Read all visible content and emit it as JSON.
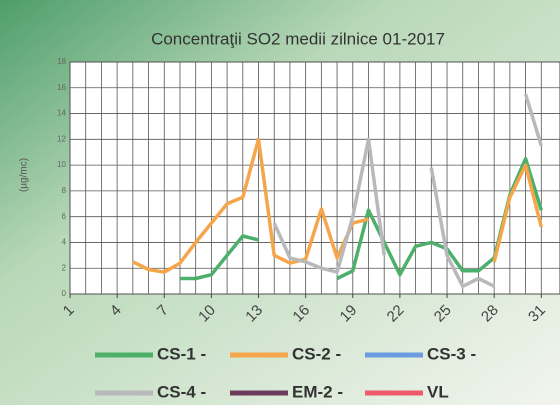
{
  "chart_data": {
    "type": "line",
    "title": "Concentraţii SO2 medii zilnice 01-2017",
    "y_label": "(µg/mc)",
    "x": [
      1,
      2,
      3,
      4,
      5,
      6,
      7,
      8,
      9,
      10,
      11,
      12,
      13,
      14,
      15,
      16,
      17,
      18,
      19,
      20,
      21,
      22,
      23,
      24,
      25,
      26,
      27,
      28,
      29,
      30,
      31
    ],
    "xlim": [
      1,
      32
    ],
    "xticks": [
      1,
      4,
      7,
      10,
      13,
      16,
      19,
      22,
      25,
      28,
      31
    ],
    "ylim": [
      0,
      18
    ],
    "yticks": [
      0,
      2,
      4,
      6,
      8,
      10,
      12,
      14,
      16,
      18
    ],
    "grid": true,
    "legend": "bottom",
    "series": [
      {
        "name": "CS-1 -",
        "color": "#4caf6a",
        "values": [
          null,
          null,
          null,
          null,
          null,
          null,
          null,
          1.2,
          1.2,
          1.5,
          3,
          4.5,
          4.2,
          null,
          null,
          null,
          null,
          1.2,
          1.8,
          6.5,
          4,
          1.5,
          3.7,
          4,
          3.5,
          1.8,
          1.8,
          2.8,
          7.7,
          10.5,
          6.5
        ]
      },
      {
        "name": "CS-2 -",
        "color": "#f5a54a",
        "values": [
          null,
          null,
          null,
          null,
          2.5,
          1.9,
          1.7,
          2.4,
          4,
          5.5,
          7,
          7.5,
          12,
          3,
          2.4,
          2.7,
          6.6,
          2.8,
          5.5,
          5.8,
          null,
          null,
          null,
          null,
          null,
          null,
          null,
          2.5,
          7.5,
          10,
          5.2
        ]
      },
      {
        "name": "CS-3 -",
        "color": "#6b9be0",
        "values": [
          null,
          null,
          null,
          null,
          null,
          null,
          null,
          null,
          null,
          null,
          null,
          null,
          null,
          null,
          null,
          null,
          null,
          null,
          null,
          null,
          null,
          null,
          null,
          null,
          null,
          null,
          null,
          null,
          null,
          null,
          null
        ]
      },
      {
        "name": "CS-4 -",
        "color": "#b9b9bd",
        "values": [
          null,
          null,
          null,
          null,
          null,
          null,
          null,
          null,
          null,
          null,
          null,
          null,
          null,
          5.5,
          2.8,
          2.5,
          2,
          1.7,
          6,
          12,
          3,
          null,
          null,
          9.8,
          3,
          0.6,
          1.2,
          0.6,
          null,
          15.5,
          11.5
        ]
      },
      {
        "name": "EM-2 -",
        "color": "#6b3a5c",
        "values": [
          null,
          null,
          null,
          null,
          null,
          null,
          null,
          null,
          null,
          null,
          null,
          null,
          null,
          null,
          null,
          null,
          null,
          null,
          null,
          null,
          null,
          null,
          null,
          null,
          null,
          null,
          null,
          null,
          null,
          null,
          null
        ]
      },
      {
        "name": "VL",
        "color": "#ee5a6a",
        "values": [
          null,
          null,
          null,
          null,
          null,
          null,
          null,
          null,
          null,
          null,
          null,
          null,
          null,
          null,
          null,
          null,
          null,
          null,
          null,
          null,
          null,
          null,
          null,
          null,
          null,
          null,
          null,
          null,
          null,
          null,
          null
        ]
      }
    ]
  }
}
